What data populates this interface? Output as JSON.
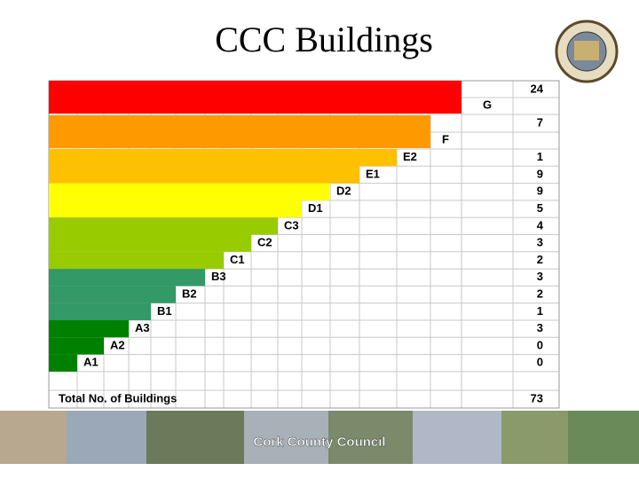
{
  "title": "CCC Buildings",
  "ratings": [
    {
      "label": "G",
      "count": 24
    },
    {
      "label": "F",
      "count": 7
    },
    {
      "label": "E2",
      "count": 1
    },
    {
      "label": "E1",
      "count": 9
    },
    {
      "label": "D2",
      "count": 9
    },
    {
      "label": "D1",
      "count": 5
    },
    {
      "label": "C3",
      "count": 4
    },
    {
      "label": "C2",
      "count": 3
    },
    {
      "label": "C1",
      "count": 2
    },
    {
      "label": "B3",
      "count": 3
    },
    {
      "label": "B2",
      "count": 2
    },
    {
      "label": "B1",
      "count": 1
    },
    {
      "label": "A3",
      "count": 3
    },
    {
      "label": "A2",
      "count": 0
    },
    {
      "label": "A1",
      "count": 0
    }
  ],
  "total": {
    "label": "Total No. of Buildings",
    "count": 73
  },
  "footer": "Cork County Council"
}
